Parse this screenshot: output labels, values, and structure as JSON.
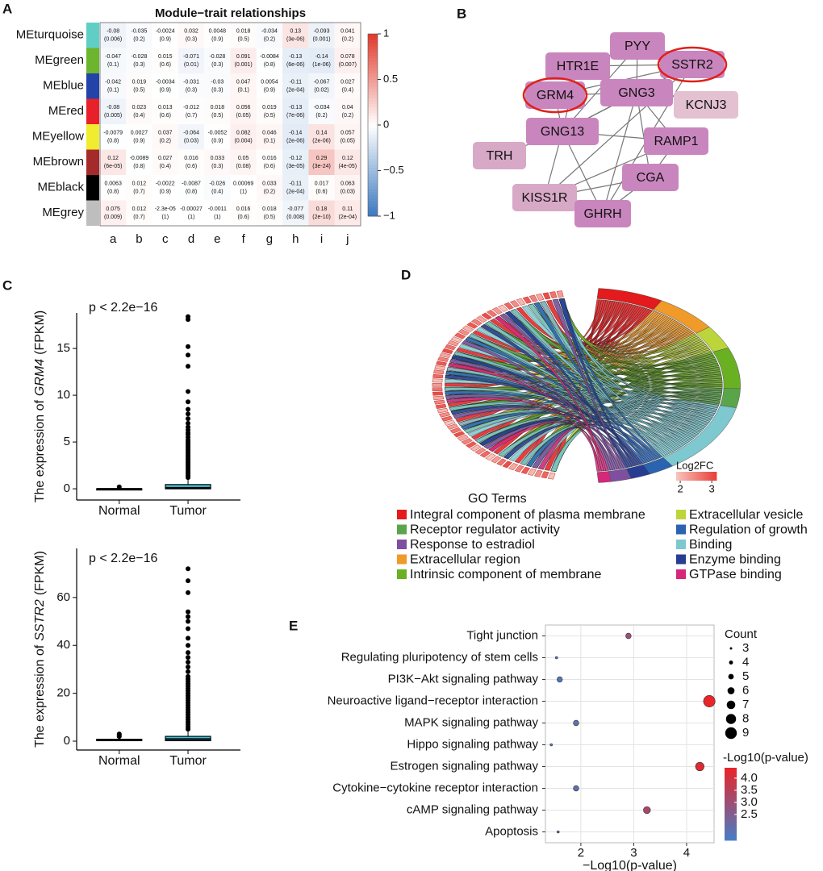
{
  "panel_labels": [
    "A",
    "B",
    "C",
    "D",
    "E"
  ],
  "chart_data": [
    {
      "type": "heatmap",
      "title": "Module−trait relationships",
      "rows": [
        "MEturquoise",
        "MEgreen",
        "MEblue",
        "MEred",
        "MEyellow",
        "MEbrown",
        "MEblack",
        "MEgrey"
      ],
      "row_colors": [
        "#5fcfc6",
        "#6cb52c",
        "#2343a8",
        "#e8202a",
        "#f0ec2f",
        "#a52a2a",
        "#000000",
        "#bebebe"
      ],
      "columns": [
        "a",
        "b",
        "c",
        "d",
        "e",
        "f",
        "g",
        "h",
        "i",
        "j"
      ],
      "values": [
        [
          -0.08,
          -0.035,
          -0.0024,
          0.032,
          0.0048,
          0.018,
          -0.034,
          0.13,
          -0.093,
          0.041
        ],
        [
          -0.047,
          -0.028,
          0.015,
          -0.071,
          -0.028,
          0.091,
          -0.0084,
          -0.13,
          -0.14,
          0.078
        ],
        [
          -0.042,
          0.019,
          -0.0034,
          -0.031,
          -0.03,
          0.047,
          0.0054,
          -0.11,
          -0.067,
          0.027
        ],
        [
          -0.08,
          0.023,
          0.013,
          -0.012,
          0.018,
          0.056,
          0.019,
          -0.13,
          -0.034,
          0.04
        ],
        [
          -0.0079,
          0.0027,
          0.037,
          -0.064,
          -0.0052,
          0.082,
          0.046,
          -0.14,
          0.14,
          0.057
        ],
        [
          0.12,
          -0.0089,
          0.027,
          0.016,
          0.033,
          0.05,
          0.016,
          -0.12,
          0.29,
          0.12
        ],
        [
          0.0063,
          0.012,
          -0.0022,
          -0.0087,
          -0.026,
          0.00069,
          0.033,
          -0.11,
          0.017,
          0.063
        ],
        [
          0.075,
          0.012,
          -2.3e-05,
          -0.00027,
          -0.0011,
          0.016,
          0.018,
          -0.077,
          0.18,
          0.11
        ]
      ],
      "value_labels": [
        [
          "-0.08",
          "-0.035",
          "-0.0024",
          "0.032",
          "0.0048",
          "0.018",
          "-0.034",
          "0.13",
          "-0.093",
          "0.041"
        ],
        [
          "-0.047",
          "-0.028",
          "0.015",
          "-0.071",
          "-0.028",
          "0.091",
          "-0.0084",
          "-0.13",
          "-0.14",
          "0.078"
        ],
        [
          "-0.042",
          "0.019",
          "-0.0034",
          "-0.031",
          "-0.03",
          "0.047",
          "0.0054",
          "-0.11",
          "-0.067",
          "0.027"
        ],
        [
          "-0.08",
          "0.023",
          "0.013",
          "-0.012",
          "0.018",
          "0.056",
          "0.019",
          "-0.13",
          "-0.034",
          "0.04"
        ],
        [
          "-0.0079",
          "0.0027",
          "0.037",
          "-0.064",
          "-0.0052",
          "0.082",
          "0.046",
          "-0.14",
          "0.14",
          "0.057"
        ],
        [
          "0.12",
          "-0.0089",
          "0.027",
          "0.016",
          "0.033",
          "0.05",
          "0.016",
          "-0.12",
          "0.29",
          "0.12"
        ],
        [
          "0.0063",
          "0.012",
          "-0.0022",
          "-0.0087",
          "-0.026",
          "0.00069",
          "0.033",
          "-0.11",
          "0.017",
          "0.063"
        ],
        [
          "0.075",
          "0.012",
          "-2.3e-05",
          "-0.00027",
          "-0.0011",
          "0.016",
          "0.018",
          "-0.077",
          "0.18",
          "0.11"
        ]
      ],
      "pvalues": [
        [
          0.006,
          0.2,
          0.9,
          0.3,
          0.9,
          0.5,
          0.2,
          3e-06,
          0.001,
          0.2
        ],
        [
          0.1,
          0.3,
          0.6,
          0.01,
          0.3,
          0.001,
          0.8,
          6e-06,
          1e-06,
          0.007
        ],
        [
          0.1,
          0.5,
          0.9,
          0.3,
          0.3,
          0.1,
          0.9,
          0.0002,
          0.02,
          0.4
        ],
        [
          0.005,
          0.4,
          0.6,
          0.7,
          0.5,
          0.05,
          0.5,
          7e-06,
          0.2,
          0.2
        ],
        [
          0.8,
          0.9,
          0.2,
          0.03,
          0.9,
          0.004,
          0.1,
          2e-06,
          2e-06,
          0.05
        ],
        [
          6e-05,
          0.8,
          0.4,
          0.6,
          0.3,
          0.08,
          0.6,
          3e-05,
          3e-24,
          4e-05
        ],
        [
          0.8,
          0.7,
          0.9,
          0.8,
          0.4,
          1,
          0.2,
          0.0002,
          0.6,
          0.03
        ],
        [
          0.009,
          0.7,
          1,
          1,
          1,
          0.6,
          0.5,
          0.008,
          2e-10,
          0.0002
        ]
      ],
      "pvalue_labels": [
        [
          "(0.006)",
          "(0.2)",
          "(0.9)",
          "(0.3)",
          "(0.9)",
          "(0.5)",
          "(0.2)",
          "(3e-06)",
          "(0.001)",
          "(0.2)"
        ],
        [
          "(0.1)",
          "(0.3)",
          "(0.6)",
          "(0.01)",
          "(0.3)",
          "(0.001)",
          "(0.8)",
          "(6e-06)",
          "(1e-06)",
          "(0.007)"
        ],
        [
          "(0.1)",
          "(0.5)",
          "(0.9)",
          "(0.3)",
          "(0.3)",
          "(0.1)",
          "(0.9)",
          "(2e-04)",
          "(0.02)",
          "(0.4)"
        ],
        [
          "(0.005)",
          "(0.4)",
          "(0.6)",
          "(0.7)",
          "(0.5)",
          "(0.05)",
          "(0.5)",
          "(7e-06)",
          "(0.2)",
          "(0.2)"
        ],
        [
          "(0.8)",
          "(0.9)",
          "(0.2)",
          "(0.03)",
          "(0.9)",
          "(0.004)",
          "(0.1)",
          "(2e-06)",
          "(2e-06)",
          "(0.05)"
        ],
        [
          "(6e-05)",
          "(0.8)",
          "(0.4)",
          "(0.6)",
          "(0.3)",
          "(0.08)",
          "(0.6)",
          "(3e-05)",
          "(3e-24)",
          "(4e-05)"
        ],
        [
          "(0.8)",
          "(0.7)",
          "(0.9)",
          "(0.8)",
          "(0.4)",
          "(1)",
          "(0.2)",
          "(2e-04)",
          "(0.6)",
          "(0.03)"
        ],
        [
          "(0.009)",
          "(0.7)",
          "(1)",
          "(1)",
          "(1)",
          "(0.6)",
          "(0.5)",
          "(0.008)",
          "(2e-10)",
          "(2e-04)"
        ]
      ],
      "colorbar_lim": [
        -1,
        1
      ],
      "colorbar_ticks": [
        1,
        0.5,
        0,
        {
          "value": -0.5,
          "label": "−0.5"
        },
        {
          "value": -1,
          "label": "−1"
        }
      ],
      "colormap": [
        "#3a78c0",
        "#ffffff",
        "#e0392b"
      ]
    },
    {
      "type": "network",
      "nodes": [
        {
          "label": "PYY",
          "color": "#c986be"
        },
        {
          "label": "HTR1E",
          "color": "#c986be"
        },
        {
          "label": "SSTR2",
          "color": "#c986be",
          "ring": true
        },
        {
          "label": "GRM4",
          "color": "#c986be",
          "ring": true
        },
        {
          "label": "GNG3",
          "color": "#c986be"
        },
        {
          "label": "KCNJ3",
          "color": "#e3c1d0"
        },
        {
          "label": "GNG13",
          "color": "#c986be"
        },
        {
          "label": "RAMP1",
          "color": "#c986be"
        },
        {
          "label": "TRH",
          "color": "#d8a9c7"
        },
        {
          "label": "CGA",
          "color": "#c986be"
        },
        {
          "label": "KISS1R",
          "color": "#d8a9c7"
        },
        {
          "label": "GHRH",
          "color": "#c986be"
        }
      ],
      "ring_color": "#e0201b"
    },
    {
      "type": "box",
      "annotation": "p < 2.2e−16",
      "ylabel": {
        "prefix": "The expression of",
        "gene": "GRM4",
        "unit": "(FPKM)"
      },
      "categories": [
        "Normal",
        "Tumor"
      ],
      "boxes": [
        {
          "min": 0,
          "q1": 0,
          "median": 0,
          "q3": 0,
          "max": 0.1,
          "outliers": [
            0.2
          ]
        },
        {
          "min": 0,
          "q1": 0,
          "median": 0.1,
          "q3": 0.45,
          "max": 1.1,
          "outliers": [
            1.2,
            1.4,
            1.6,
            1.8,
            2.0,
            2.2,
            2.4,
            2.6,
            2.8,
            3.0,
            3.2,
            3.4,
            3.6,
            3.8,
            4.0,
            4.2,
            4.4,
            4.6,
            4.8,
            5.0,
            5.2,
            5.5,
            5.8,
            6.0,
            6.3,
            6.6,
            7.0,
            7.5,
            8.0,
            8.5,
            9.3,
            10.4,
            13.1,
            14.3,
            15.2,
            18.1,
            18.4
          ]
        }
      ],
      "ylim": [
        -1.2,
        18.8
      ],
      "yticks": [
        0,
        5,
        10,
        15
      ],
      "box_color": "#3fc1d6"
    },
    {
      "type": "box",
      "annotation": "p < 2.2e−16",
      "ylabel": {
        "prefix": "The expression of",
        "gene": "SSTR2",
        "unit": "(FPKM)"
      },
      "categories": [
        "Normal",
        "Tumor"
      ],
      "boxes": [
        {
          "min": 0,
          "q1": 0.2,
          "median": 0.5,
          "q3": 0.8,
          "max": 1.5,
          "outliers": [
            2,
            2.5,
            3
          ]
        },
        {
          "min": 0,
          "q1": 0.2,
          "median": 0.9,
          "q3": 2.0,
          "max": 4.7,
          "outliers": [
            5,
            6,
            7,
            8,
            9,
            10,
            11,
            12,
            13,
            14,
            15,
            16,
            17,
            18,
            19,
            20,
            21,
            22,
            23,
            24,
            25,
            26,
            27,
            29,
            31,
            33,
            35,
            37,
            40,
            43,
            47,
            50,
            52,
            54,
            62,
            67,
            72
          ]
        }
      ],
      "ylim": [
        -3.7,
        80.5
      ],
      "yticks": [
        0,
        20,
        40,
        60
      ],
      "box_color": "#3fc1d6"
    },
    {
      "type": "chord",
      "legend_title": "GO Terms",
      "terms": [
        "Integral component of plasma membrane",
        "Receptor regulator activity",
        "Response to estradiol",
        "Extracellular region",
        "Intrinsic component of membrane",
        "Extracellular vesicle",
        "Regulation of growth",
        "Binding",
        "Enzyme binding",
        "GTPase binding"
      ],
      "colors": [
        "#e41a1c",
        "#5aa54a",
        "#7e4fa0",
        "#f09a2a",
        "#6ab023",
        "#bcd53a",
        "#2a63b0",
        "#7ec8d0",
        "#273d92",
        "#d6287a"
      ],
      "values": [
        26,
        12,
        8,
        25,
        26,
        15,
        10,
        45,
        8,
        5
      ],
      "colorbar_title": "Log2FC",
      "colorbar_lim": [
        1.87,
        3.15
      ],
      "colorbar_ticks": [
        2,
        3
      ],
      "colormap": [
        "#f7c3bb",
        "#e8413a"
      ]
    },
    {
      "type": "bubble",
      "categories": [
        "Tight junction",
        "Regulating pluripotency of stem cells",
        "PI3K−Akt signaling pathway",
        "Neuroactive ligand−receptor interaction",
        "MAPK signaling pathway",
        "Hippo signaling pathway",
        "Estrogen signaling pathway",
        "Cytokine−cytokine receptor interaction",
        "cAMP signaling pathway",
        "Apoptosis"
      ],
      "label_colors": [
        "#111111",
        "#e0201b",
        "#e0201b",
        "#111111",
        "#e0201b",
        "#111111",
        "#e0201b",
        "#e0201b",
        "#e0201b",
        "#111111"
      ],
      "values": [
        2.9,
        1.54,
        1.6,
        4.43,
        1.91,
        1.44,
        4.25,
        1.91,
        3.25,
        1.57
      ],
      "sizes": [
        5,
        3,
        5,
        9,
        5,
        3,
        7,
        5,
        6,
        3
      ],
      "xlabel": "−Log10(p-value)",
      "xlim": [
        1.33,
        4.52
      ],
      "xticks": [
        2,
        3,
        4
      ],
      "grid": true,
      "size_title": "Count",
      "size_legend": [
        3,
        4,
        5,
        6,
        7,
        8,
        9
      ],
      "color_title": "-Log10(p-value)",
      "clim": [
        1.43,
        4.43
      ],
      "cticks": [
        {
          "value": 4,
          "label": "4.0"
        },
        3.5,
        {
          "value": 3,
          "label": "3.0"
        },
        2.5
      ],
      "colormap": [
        "#4a7cc4",
        "#e8252a"
      ]
    }
  ]
}
